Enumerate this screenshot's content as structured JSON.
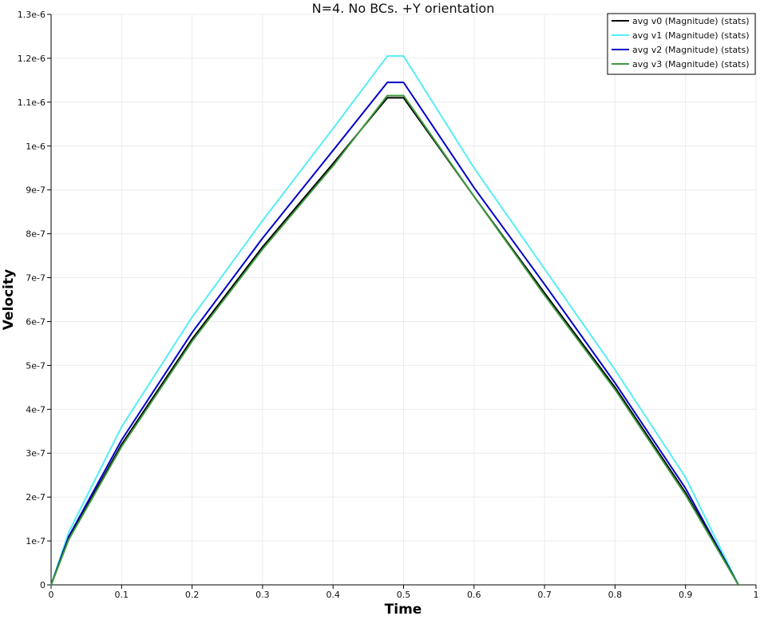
{
  "chart_data": {
    "type": "line",
    "title": "N=4. No BCs. +Y orientation",
    "xlabel": "Time",
    "ylabel": "Velocity",
    "xlim": [
      0,
      1
    ],
    "ylim": [
      0,
      1.3e-06
    ],
    "x_ticks": [
      {
        "value": 0,
        "label": "0"
      },
      {
        "value": 0.1,
        "label": "0.1"
      },
      {
        "value": 0.2,
        "label": "0.2"
      },
      {
        "value": 0.3,
        "label": "0.3"
      },
      {
        "value": 0.4,
        "label": "0.4"
      },
      {
        "value": 0.5,
        "label": "0.5"
      },
      {
        "value": 0.6,
        "label": "0.6"
      },
      {
        "value": 0.7,
        "label": "0.7"
      },
      {
        "value": 0.8,
        "label": "0.8"
      },
      {
        "value": 0.9,
        "label": "0.9"
      },
      {
        "value": 1,
        "label": "1"
      }
    ],
    "y_ticks": [
      {
        "value": 0,
        "label": "0"
      },
      {
        "value": 1e-07,
        "label": "1e-7"
      },
      {
        "value": 2e-07,
        "label": "2e-7"
      },
      {
        "value": 3e-07,
        "label": "3e-7"
      },
      {
        "value": 4e-07,
        "label": "4e-7"
      },
      {
        "value": 5e-07,
        "label": "5e-7"
      },
      {
        "value": 6e-07,
        "label": "6e-7"
      },
      {
        "value": 7e-07,
        "label": "7e-7"
      },
      {
        "value": 8e-07,
        "label": "8e-7"
      },
      {
        "value": 9e-07,
        "label": "9e-7"
      },
      {
        "value": 1e-06,
        "label": "1e-6"
      },
      {
        "value": 1.1e-06,
        "label": "1.1e-6"
      },
      {
        "value": 1.2e-06,
        "label": "1.2e-6"
      },
      {
        "value": 1.3e-06,
        "label": "1.3e-6"
      }
    ],
    "grid": true,
    "legend_position": "top-right",
    "series": [
      {
        "name": "avg v0 (Magnitude) (stats)",
        "color": "#000000",
        "x": [
          0,
          0.025,
          0.1,
          0.2,
          0.3,
          0.4,
          0.477,
          0.5,
          0.6,
          0.7,
          0.8,
          0.9,
          0.975
        ],
        "y": [
          0,
          1.05e-07,
          3.2e-07,
          5.6e-07,
          7.7e-07,
          9.6e-07,
          1.11e-06,
          1.11e-06,
          8.85e-07,
          6.65e-07,
          4.5e-07,
          2.1e-07,
          0
        ]
      },
      {
        "name": "avg v1 (Magnitude) (stats)",
        "color": "#55eef5",
        "x": [
          0,
          0.025,
          0.1,
          0.2,
          0.3,
          0.4,
          0.477,
          0.5,
          0.6,
          0.7,
          0.8,
          0.9,
          0.975
        ],
        "y": [
          0,
          1.2e-07,
          3.6e-07,
          6.1e-07,
          8.3e-07,
          1.04e-06,
          1.205e-06,
          1.205e-06,
          9.5e-07,
          7.2e-07,
          4.9e-07,
          2.45e-07,
          0
        ]
      },
      {
        "name": "avg v2 (Magnitude) (stats)",
        "color": "#0000c8",
        "x": [
          0,
          0.025,
          0.1,
          0.2,
          0.3,
          0.4,
          0.477,
          0.5,
          0.6,
          0.7,
          0.8,
          0.9,
          0.975
        ],
        "y": [
          0,
          1.1e-07,
          3.3e-07,
          5.75e-07,
          7.9e-07,
          9.9e-07,
          1.145e-06,
          1.145e-06,
          9.05e-07,
          6.85e-07,
          4.6e-07,
          2.2e-07,
          0
        ]
      },
      {
        "name": "avg v3 (Magnitude) (stats)",
        "color": "#3d9a3d",
        "x": [
          0,
          0.025,
          0.1,
          0.2,
          0.3,
          0.4,
          0.477,
          0.5,
          0.6,
          0.7,
          0.8,
          0.9,
          0.975
        ],
        "y": [
          0,
          1.03e-07,
          3.15e-07,
          5.55e-07,
          7.65e-07,
          9.55e-07,
          1.115e-06,
          1.115e-06,
          8.85e-07,
          6.6e-07,
          4.45e-07,
          2.05e-07,
          0
        ]
      }
    ]
  }
}
